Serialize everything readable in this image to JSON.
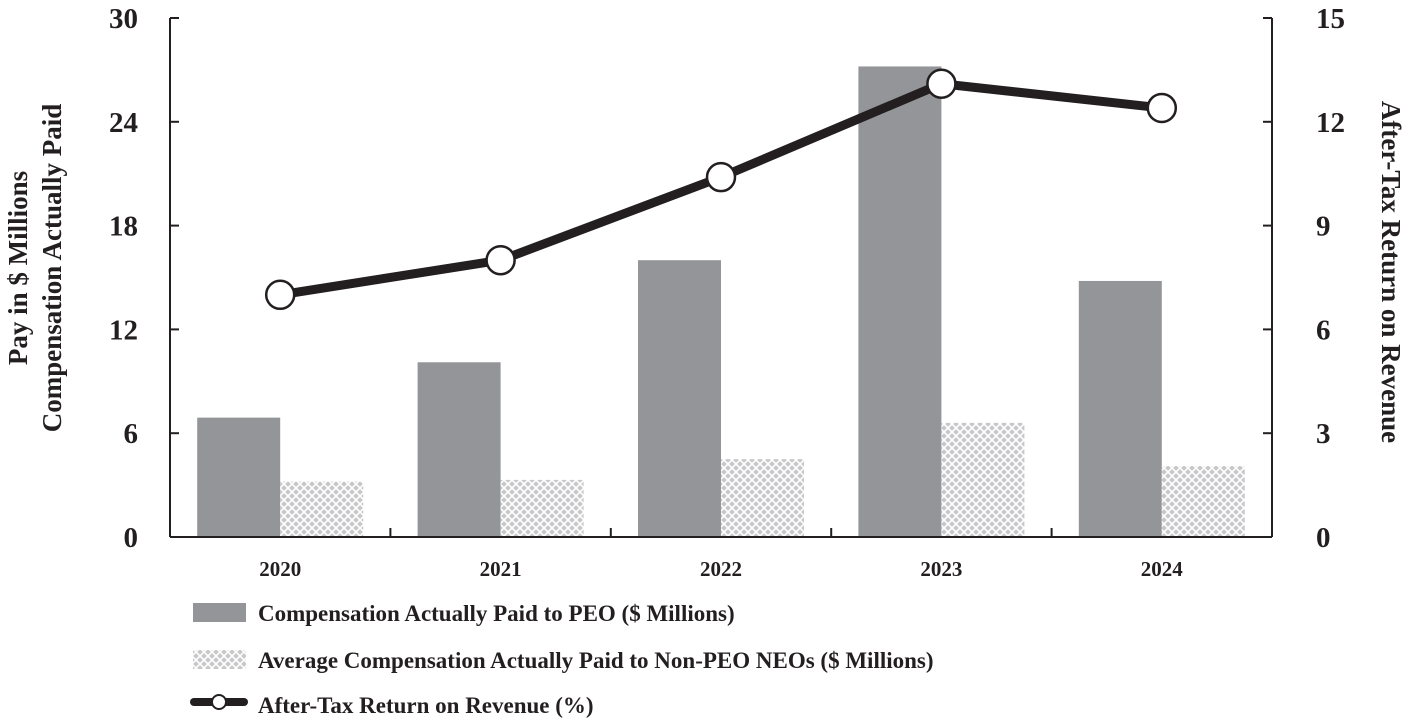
{
  "chart_data": {
    "type": "bar",
    "categories": [
      "2020",
      "2021",
      "2022",
      "2023",
      "2024"
    ],
    "series": [
      {
        "name": "Compensation Actually Paid to PEO ($ Millions)",
        "kind": "bar",
        "axis": "left",
        "color": "#939598",
        "values": [
          6.9,
          10.1,
          16.0,
          27.2,
          14.8
        ]
      },
      {
        "name": "Average Compensation Actually Paid to Non-PEO NEOs ($ Millions)",
        "kind": "bar-hatched",
        "axis": "left",
        "color": "#b9b9bb",
        "values": [
          3.2,
          3.3,
          4.5,
          6.6,
          4.1
        ]
      },
      {
        "name": "After-Tax Return on Revenue (%)",
        "kind": "line",
        "axis": "right",
        "color": "#231f20",
        "values": [
          7.0,
          8.0,
          10.4,
          13.1,
          12.4
        ]
      }
    ],
    "ylabel": [
      "Pay in $ Millions",
      "Compensation Actually Paid"
    ],
    "y2label": "After-Tax Return on Revenue",
    "ylim": [
      0,
      30
    ],
    "y2lim": [
      0,
      15
    ],
    "yticks": [
      0,
      6,
      12,
      18,
      24,
      30
    ],
    "y2ticks": [
      0,
      3,
      6,
      9,
      12,
      15
    ],
    "legend": "bottom"
  }
}
